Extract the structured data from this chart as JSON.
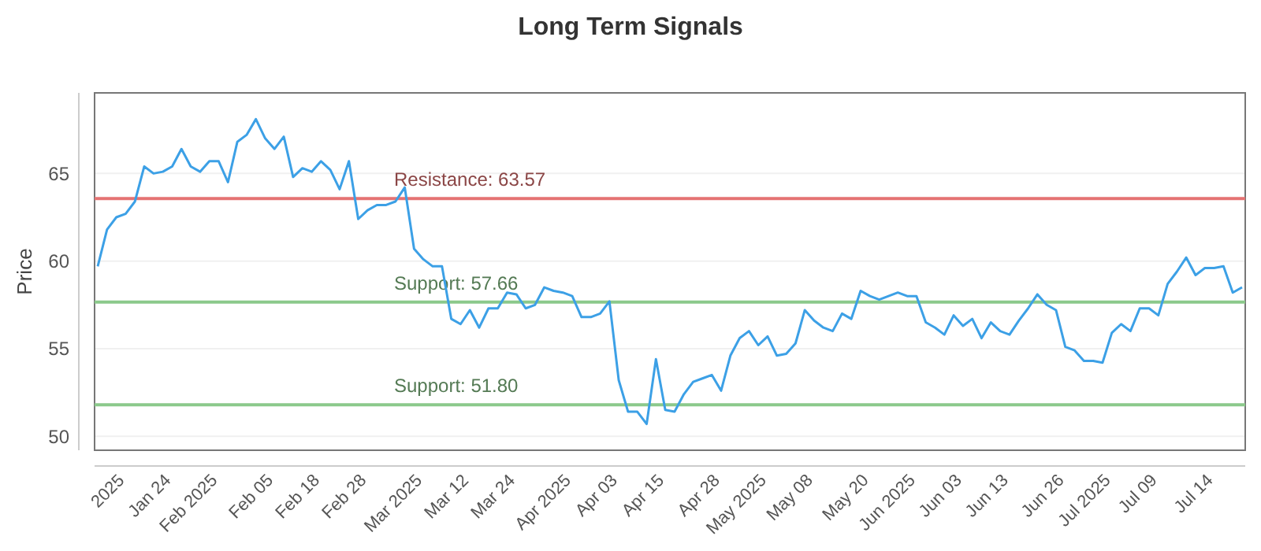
{
  "chart_data": {
    "type": "line",
    "title": "Long Term Signals",
    "ylabel": "Price",
    "categories": [
      null,
      null,
      null,
      "2025",
      null,
      null,
      null,
      null,
      "Jan 24",
      null,
      null,
      null,
      null,
      "Feb 2025",
      null,
      null,
      null,
      null,
      null,
      "Feb 05",
      null,
      null,
      null,
      null,
      "Feb 18",
      null,
      null,
      null,
      null,
      "Feb 28",
      null,
      null,
      null,
      null,
      null,
      "Mar 2025",
      null,
      null,
      null,
      null,
      "Mar 12",
      null,
      null,
      null,
      null,
      "Mar 24",
      null,
      null,
      null,
      null,
      null,
      "Apr 2025",
      null,
      null,
      null,
      null,
      "Apr 03",
      null,
      null,
      null,
      null,
      "Apr 15",
      null,
      null,
      null,
      null,
      null,
      "Apr 28",
      null,
      null,
      null,
      null,
      "May 2025",
      null,
      null,
      null,
      null,
      "May 08",
      null,
      null,
      null,
      null,
      null,
      "May 20",
      null,
      null,
      null,
      null,
      "Jun 2025",
      null,
      null,
      null,
      null,
      "Jun 03",
      null,
      null,
      null,
      null,
      "Jun 13",
      null,
      null,
      null,
      null,
      null,
      "Jun 26",
      null,
      null,
      null,
      null,
      "Jul 2025",
      null,
      null,
      null,
      null,
      "Jul 09",
      null,
      null,
      null,
      null,
      null,
      "Jul 14",
      null,
      null,
      null
    ],
    "series": [
      {
        "color": "#3ca0e6",
        "values": [
          59.7,
          61.8,
          62.5,
          62.7,
          63.4,
          65.4,
          65.0,
          65.1,
          65.4,
          66.4,
          65.4,
          65.1,
          65.7,
          65.7,
          64.5,
          66.8,
          67.2,
          68.1,
          67.0,
          66.4,
          67.1,
          64.8,
          65.3,
          65.1,
          65.7,
          65.2,
          64.1,
          65.7,
          62.4,
          62.9,
          63.2,
          63.2,
          63.4,
          64.2,
          60.7,
          60.1,
          59.7,
          59.7,
          56.7,
          56.4,
          57.2,
          56.2,
          57.3,
          57.3,
          58.2,
          58.1,
          57.3,
          57.5,
          58.5,
          58.3,
          58.2,
          58.0,
          56.8,
          56.8,
          57.0,
          57.7,
          53.2,
          51.4,
          51.4,
          50.7,
          54.4,
          51.5,
          51.4,
          52.4,
          53.1,
          53.3,
          53.5,
          52.6,
          54.6,
          55.6,
          56.0,
          55.2,
          55.7,
          54.6,
          54.7,
          55.3,
          57.2,
          56.6,
          56.2,
          56.0,
          57.0,
          56.7,
          58.3,
          58.0,
          57.8,
          58.0,
          58.2,
          58.0,
          58.0,
          56.5,
          56.2,
          55.8,
          56.9,
          56.3,
          56.7,
          55.6,
          56.5,
          56.0,
          55.8,
          56.6,
          57.3,
          58.1,
          57.5,
          57.2,
          55.1,
          54.9,
          54.3,
          54.3,
          54.2,
          55.9,
          56.4,
          56.0,
          57.3,
          57.3,
          56.9,
          58.7,
          59.4,
          60.2,
          59.2,
          59.6,
          59.6,
          59.7,
          58.2,
          58.5
        ]
      }
    ],
    "ylim": [
      49.2,
      69.6
    ],
    "yticks": [
      50,
      55,
      60,
      65
    ],
    "grid": "y",
    "marker": "none",
    "line_style": "solid",
    "ref_lines": [
      {
        "axis": "y",
        "value": 63.57,
        "label": "Resistance: 63.57",
        "color": "#e57373"
      },
      {
        "axis": "y",
        "value": 57.66,
        "label": "Support: 57.66",
        "color": "#8bc98b"
      },
      {
        "axis": "y",
        "value": 51.8,
        "label": "Support: 51.80",
        "color": "#8bc98b"
      }
    ]
  }
}
